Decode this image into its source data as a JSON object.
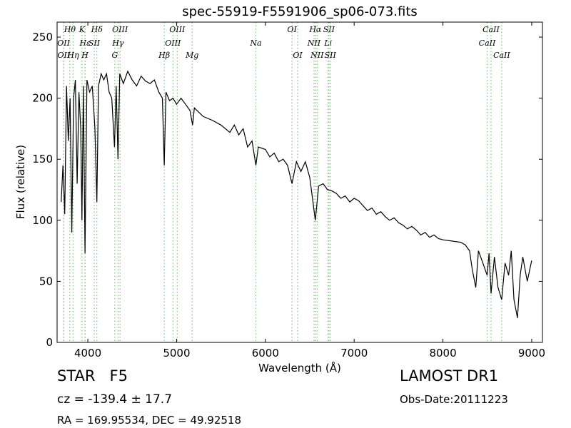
{
  "chart_data": {
    "type": "line",
    "title": "spec-55919-F5591906_sp06-073.fits",
    "x_label": "Wavelength (Å)",
    "y_label": "Flux (relative)",
    "xlim": [
      3654,
      9121
    ],
    "ylim": [
      0,
      262.3
    ],
    "xticks": [
      4000,
      5000,
      6000,
      7000,
      8000,
      9000
    ],
    "yticks": [
      0,
      50,
      100,
      150,
      200,
      250
    ],
    "color": "#000000",
    "line_color": "#7fbf7f",
    "x": [
      3700,
      3720,
      3740,
      3760,
      3780,
      3800,
      3820,
      3840,
      3860,
      3880,
      3900,
      3920,
      3934,
      3950,
      3968,
      3990,
      4020,
      4050,
      4080,
      4102,
      4120,
      4150,
      4180,
      4210,
      4240,
      4270,
      4300,
      4320,
      4340,
      4360,
      4400,
      4450,
      4500,
      4550,
      4600,
      4650,
      4700,
      4750,
      4800,
      4840,
      4861,
      4880,
      4920,
      4960,
      5000,
      5050,
      5100,
      5150,
      5180,
      5200,
      5300,
      5400,
      5500,
      5600,
      5650,
      5700,
      5750,
      5800,
      5850,
      5893,
      5920,
      6000,
      6050,
      6100,
      6150,
      6200,
      6250,
      6300,
      6350,
      6400,
      6450,
      6500,
      6563,
      6600,
      6650,
      6700,
      6750,
      6800,
      6850,
      6900,
      6950,
      7000,
      7050,
      7100,
      7150,
      7200,
      7250,
      7300,
      7350,
      7400,
      7450,
      7500,
      7550,
      7600,
      7650,
      7700,
      7750,
      7800,
      7850,
      7900,
      7950,
      8000,
      8100,
      8200,
      8250,
      8300,
      8330,
      8370,
      8400,
      8450,
      8498,
      8520,
      8542,
      8580,
      8620,
      8662,
      8700,
      8740,
      8770,
      8800,
      8840,
      8870,
      8900,
      8950,
      9000
    ],
    "values": [
      115,
      145,
      105,
      210,
      165,
      200,
      90,
      200,
      215,
      130,
      205,
      175,
      100,
      210,
      73,
      215,
      205,
      210,
      175,
      115,
      210,
      220,
      215,
      220,
      205,
      200,
      160,
      210,
      150,
      220,
      212,
      222,
      215,
      210,
      218,
      214,
      212,
      215,
      205,
      200,
      145,
      205,
      198,
      200,
      195,
      200,
      195,
      190,
      178,
      192,
      185,
      182,
      178,
      172,
      178,
      170,
      175,
      160,
      165,
      145,
      160,
      158,
      152,
      155,
      148,
      150,
      145,
      130,
      148,
      140,
      148,
      135,
      100,
      128,
      130,
      125,
      124,
      122,
      118,
      120,
      115,
      118,
      116,
      112,
      108,
      110,
      105,
      107,
      103,
      100,
      102,
      98,
      96,
      93,
      95,
      92,
      88,
      90,
      86,
      88,
      85,
      84,
      83,
      82,
      80,
      75,
      60,
      45,
      75,
      65,
      55,
      73,
      40,
      70,
      45,
      35,
      65,
      55,
      75,
      35,
      20,
      55,
      70,
      50,
      67
    ],
    "annotation_rows": [
      [
        {
          "label": "Hθ",
          "x": 3798
        },
        {
          "label": "K",
          "x": 3934
        },
        {
          "label": "Hδ",
          "x": 4102
        },
        {
          "label": "OIII",
          "x": 4363
        },
        {
          "label": "OIII",
          "x": 5007
        },
        {
          "label": "OI",
          "x": 6300
        },
        {
          "label": "Hα",
          "x": 6563
        },
        {
          "label": "SII",
          "x": 6716
        },
        {
          "label": "CaII",
          "x": 8542
        }
      ],
      [
        {
          "label": "OII",
          "x": 3727
        },
        {
          "label": "Hε",
          "x": 3970
        },
        {
          "label": "SII",
          "x": 4072
        },
        {
          "label": "Hγ",
          "x": 4340
        },
        {
          "label": "OIII",
          "x": 4959
        },
        {
          "label": "Na",
          "x": 5893
        },
        {
          "label": "NII",
          "x": 6548
        },
        {
          "label": "Li",
          "x": 6707
        },
        {
          "label": "CaII",
          "x": 8498
        }
      ],
      [
        {
          "label": "OII",
          "x": 3729
        },
        {
          "label": "Hη",
          "x": 3835
        },
        {
          "label": "H",
          "x": 3968
        },
        {
          "label": "G",
          "x": 4304
        },
        {
          "label": "Hβ",
          "x": 4861
        },
        {
          "label": "Mg",
          "x": 5175
        },
        {
          "label": "OI",
          "x": 6364
        },
        {
          "label": "NII",
          "x": 6583
        },
        {
          "label": "SII",
          "x": 6731
        },
        {
          "label": "CaII",
          "x": 8662
        }
      ]
    ],
    "class_label": "STAR   F5",
    "redshift": "cz = -139.4 ± 17.7",
    "coords": "RA = 169.95534, DEC = 49.92518",
    "survey": "LAMOST DR1",
    "obs_date": "Obs-Date:20111223"
  }
}
